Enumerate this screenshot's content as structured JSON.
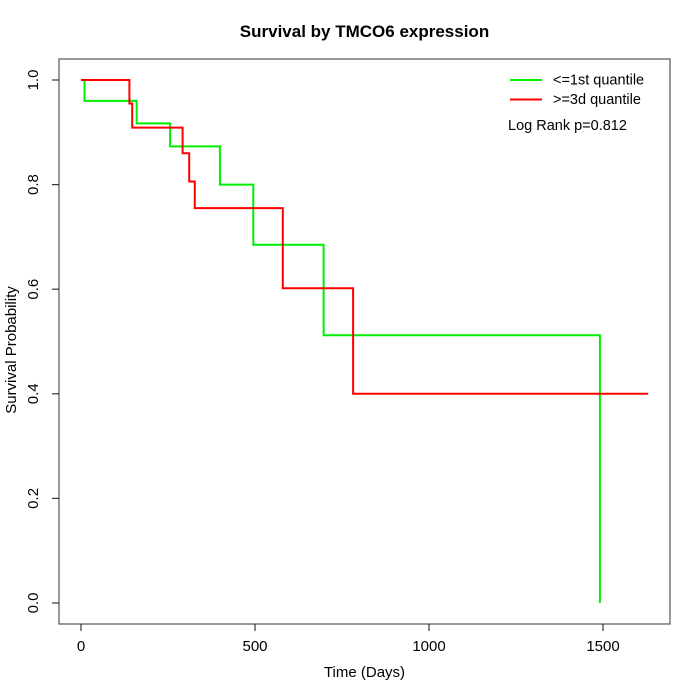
{
  "page": {
    "background_color": "#ffffff"
  },
  "chart_data": {
    "type": "line",
    "subtype": "kaplan_meier_step",
    "title": "Survival by TMCO6 expression",
    "xlabel": "Time (Days)",
    "ylabel": "Survival Probability",
    "xticks": [
      0,
      500,
      1000,
      1500
    ],
    "yticks": [
      "0.0",
      "0.2",
      "0.4",
      "0.6",
      "0.8",
      "1.0"
    ],
    "xlim": [
      -60,
      1695
    ],
    "ylim": [
      -0.04,
      1.04
    ],
    "grid": false,
    "legend_position": "top-right",
    "annotation": "Log Rank p=0.812",
    "series": [
      {
        "name": "<=1st quantile",
        "color": "#00EE00",
        "steps": [
          [
            0,
            1.0
          ],
          [
            10,
            0.96
          ],
          [
            160,
            0.917
          ],
          [
            256,
            0.873
          ],
          [
            399,
            0.8
          ],
          [
            495,
            0.685
          ],
          [
            697,
            0.512
          ],
          [
            1491,
            0.0
          ]
        ],
        "end_x": 1491
      },
      {
        "name": ">=3d quantile",
        "color": "#FF0000",
        "steps": [
          [
            0,
            1.0
          ],
          [
            139,
            0.955
          ],
          [
            147,
            0.909
          ],
          [
            292,
            0.86
          ],
          [
            311,
            0.806
          ],
          [
            327,
            0.755
          ],
          [
            580,
            0.602
          ],
          [
            782,
            0.4
          ]
        ],
        "end_x": 1630
      }
    ]
  },
  "legend": {
    "entries": [
      {
        "label": "<=1st quantile",
        "color": "#00EE00"
      },
      {
        "label": ">=3d quantile",
        "color": "#FF0000"
      }
    ]
  },
  "colors": {
    "box_border": "#555555",
    "tick": "#333333",
    "text": "#000000"
  }
}
